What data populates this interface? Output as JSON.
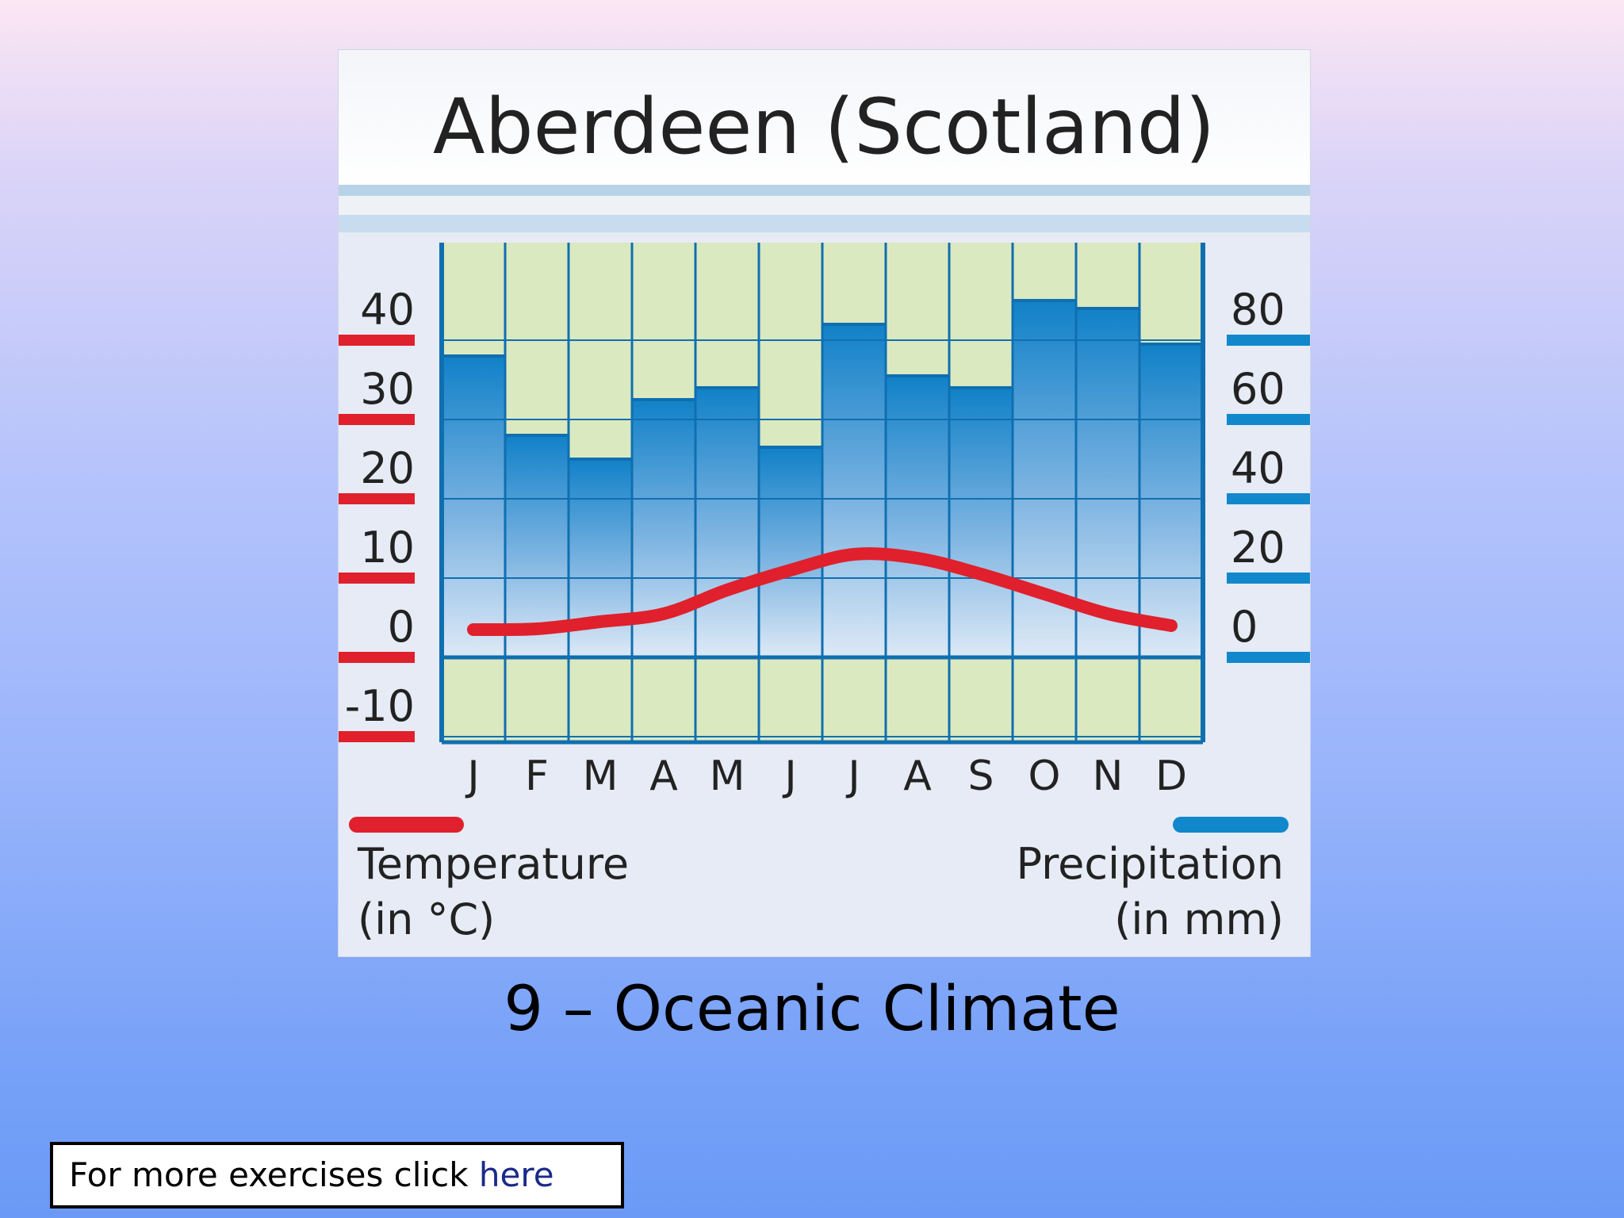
{
  "slide": {
    "subtitle": "9 – Oceanic Climate",
    "footer_text": "For more exercises click",
    "footer_link": "here"
  },
  "chart_data": {
    "type": "bar",
    "title": "Aberdeen (Scotland)",
    "categories": [
      "J",
      "F",
      "M",
      "A",
      "M",
      "J",
      "J",
      "A",
      "S",
      "O",
      "N",
      "D"
    ],
    "series": [
      {
        "name": "Precipitation",
        "kind": "bar",
        "axis": "right",
        "color": "#1188cc",
        "values": [
          76,
          56,
          50,
          65,
          68,
          53,
          84,
          71,
          68,
          90,
          88,
          79
        ]
      },
      {
        "name": "Temperature",
        "kind": "line",
        "axis": "left",
        "color": "#e0202c",
        "values": [
          3.5,
          3.6,
          4.5,
          5.5,
          8.5,
          11,
          13,
          12.5,
          10.5,
          8,
          5.5,
          4
        ]
      }
    ],
    "y_left": {
      "ticks": [
        40,
        30,
        20,
        10,
        0,
        -10
      ],
      "tick_labels": [
        "40",
        "30",
        "20",
        "10",
        "0",
        "-10"
      ],
      "range": [
        -10,
        40
      ]
    },
    "y_right": {
      "ticks": [
        80,
        60,
        40,
        20,
        0
      ],
      "tick_labels": [
        "80",
        "60",
        "40",
        "20",
        "0"
      ],
      "range": [
        0,
        80
      ]
    },
    "legend": {
      "temperature_label": "Temperature",
      "temperature_unit": "(in °C)",
      "precipitation_label": "Precipitation",
      "precipitation_unit": "(in mm)"
    },
    "colors": {
      "plot_bg": "#dbe9c0",
      "grid": "#0f6fb0",
      "bar_top": "#1181c8",
      "bar_bottom": "#dbe8f6",
      "temp": "#e0202c",
      "precip": "#1188cc"
    },
    "grid": true
  }
}
